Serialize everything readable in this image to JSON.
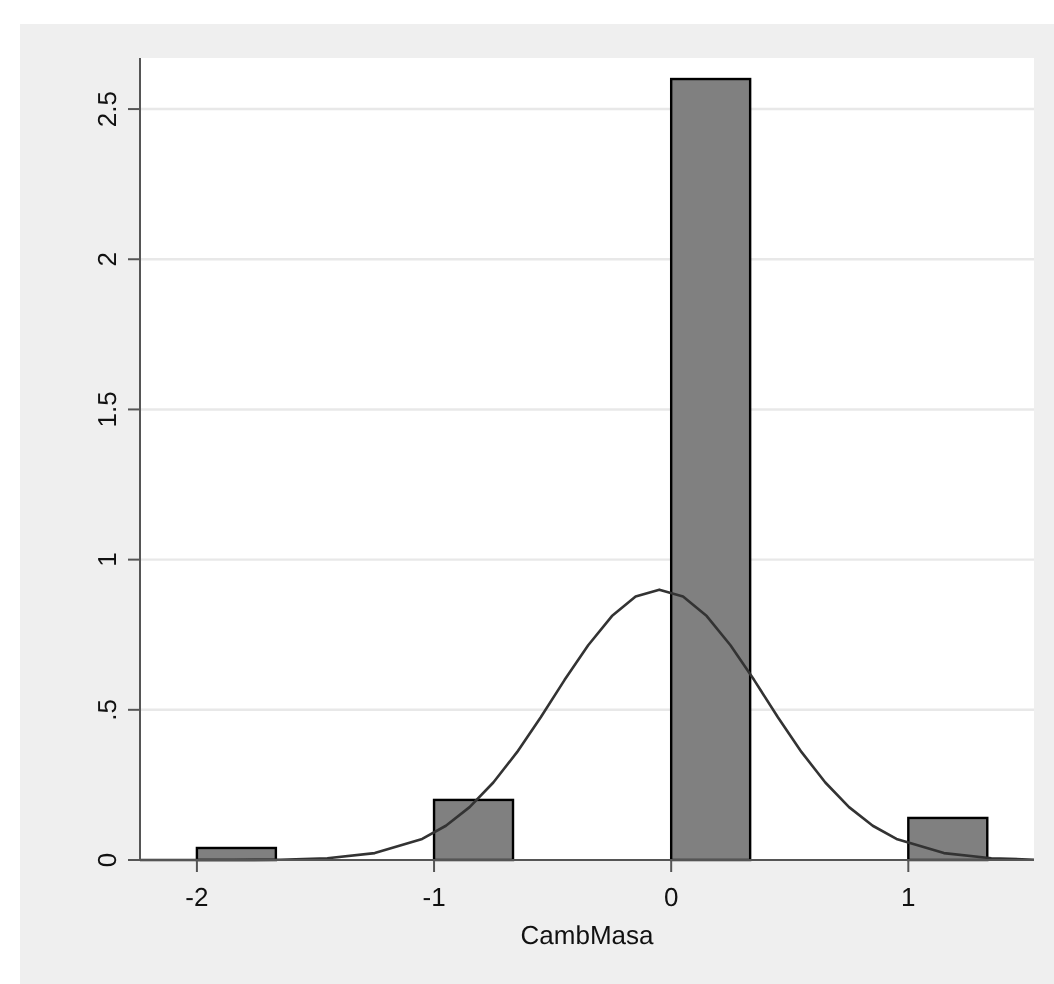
{
  "chart_data": {
    "type": "histogram",
    "xlabel": "CambMasa",
    "bins": [
      -2,
      -1.667,
      -1.333,
      -1,
      -0.667,
      -0.333,
      0,
      0.333,
      0.667,
      1,
      1.333
    ],
    "values": [
      0.04,
      0,
      0,
      0.2,
      0,
      0,
      2.6,
      0,
      0,
      0.14
    ],
    "color": "#808080",
    "series": [
      {
        "type": "line",
        "color": "#333333",
        "x": [
          -2.24,
          -1.85,
          -1.65,
          -1.45,
          -1.25,
          -1.05,
          -0.95,
          -0.85,
          -0.75,
          -0.65,
          -0.55,
          -0.45,
          -0.35,
          -0.25,
          -0.15,
          -0.05,
          0.05,
          0.15,
          0.25,
          0.35,
          0.45,
          0.55,
          0.65,
          0.75,
          0.85,
          0.95,
          1.15,
          1.35,
          1.53
        ],
        "values": [
          0,
          0,
          0.001,
          0.006,
          0.023,
          0.07,
          0.114,
          0.176,
          0.258,
          0.359,
          0.475,
          0.599,
          0.715,
          0.812,
          0.877,
          0.9,
          0.877,
          0.812,
          0.715,
          0.599,
          0.475,
          0.359,
          0.258,
          0.176,
          0.114,
          0.07,
          0.023,
          0.006,
          0.001
        ]
      }
    ],
    "xlim": [
      -2.24,
      1.53
    ],
    "ylim": [
      0,
      2.67
    ],
    "xticks": [
      -2,
      -1,
      0,
      1
    ],
    "yticks": [
      0,
      {
        "value": 0.5,
        "label": ".5"
      },
      1,
      {
        "value": 1.5,
        "label": "1.5"
      },
      2,
      {
        "value": 2.5,
        "label": "2.5"
      }
    ],
    "grid": "y"
  }
}
